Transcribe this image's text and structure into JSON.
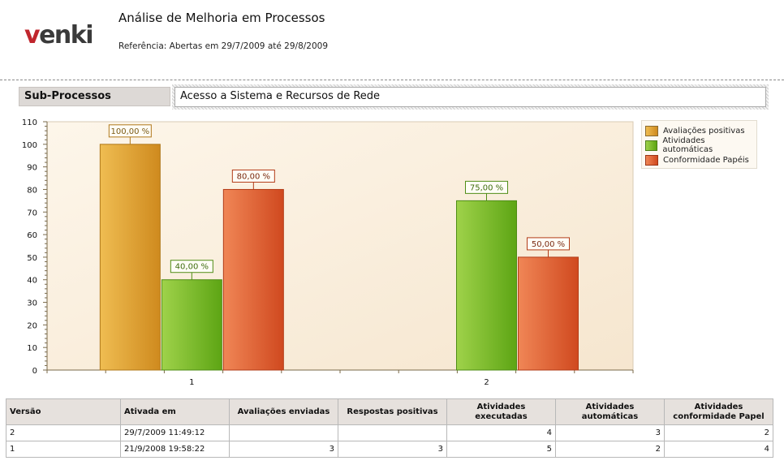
{
  "header": {
    "logo_text": "venki",
    "title": "Análise de Melhoria em Processos",
    "reference": "Referência: Abertas em 29/7/2009 até 29/8/2009"
  },
  "subprocess": {
    "label": "Sub-Processos",
    "value": "Acesso a Sistema e Recursos de Rede"
  },
  "chart_data": {
    "type": "bar",
    "categories": [
      "1",
      "2"
    ],
    "ylim": [
      0,
      110
    ],
    "yticks": [
      0,
      10,
      20,
      30,
      40,
      50,
      60,
      70,
      80,
      90,
      100,
      110
    ],
    "grid": false,
    "legend_position": "right",
    "series": [
      {
        "name": "Avaliações positivas",
        "color": "#e0a83a",
        "values": [
          100,
          null
        ],
        "labels": [
          "100,00 %",
          ""
        ]
      },
      {
        "name": "Atividades automáticas",
        "color": "#82bb2e",
        "values": [
          40,
          75
        ],
        "labels": [
          "40,00 %",
          "75,00 %"
        ]
      },
      {
        "name": "Conformidade Papéis",
        "color": "#e26a3c",
        "values": [
          80,
          50
        ],
        "labels": [
          "80,00 %",
          "50,00 %"
        ]
      }
    ]
  },
  "table": {
    "columns": [
      "Versão",
      "Ativada em",
      "Avaliações enviadas",
      "Respostas positivas",
      "Atividades executadas",
      "Atividades automáticas",
      "Atividades conformidade Papel"
    ],
    "rows": [
      [
        "2",
        "29/7/2009 11:49:12",
        "",
        "",
        "4",
        "3",
        "2"
      ],
      [
        "1",
        "21/9/2008 19:58:22",
        "3",
        "3",
        "5",
        "2",
        "4"
      ]
    ]
  }
}
